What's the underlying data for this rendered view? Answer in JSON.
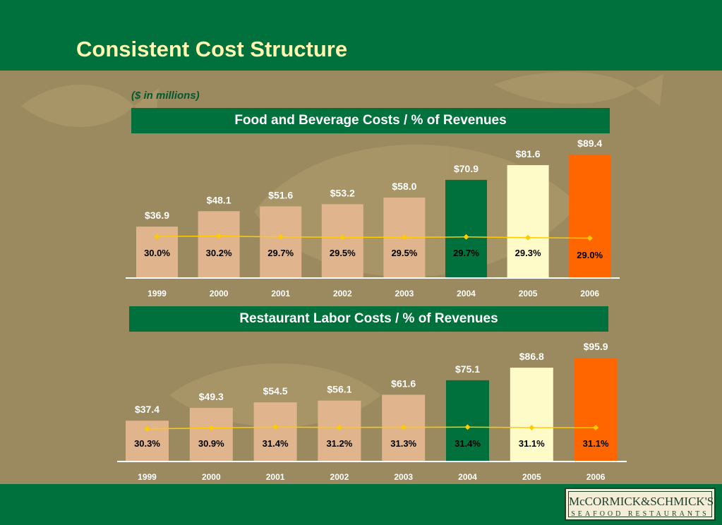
{
  "page": {
    "title": "Consistent Cost Structure",
    "subtitle": "($ in millions)"
  },
  "logo": {
    "main": "McCORMICK&SCHMICK'S",
    "sub": "SEAFOOD RESTAURANTS"
  },
  "colors": {
    "header_green": "#00703c",
    "background": "#9b8a5f",
    "bar_tan": "#e0b48c",
    "bar_green": "#00703c",
    "bar_cream": "#fffbc8",
    "bar_orange": "#ff6600",
    "line_yellow": "#ffcc00"
  },
  "chart_data": [
    {
      "type": "bar",
      "title": "Food and Beverage Costs / % of Revenues",
      "categories": [
        "1999",
        "2000",
        "2001",
        "2002",
        "2003",
        "2004",
        "2005",
        "2006"
      ],
      "values": [
        36.9,
        48.1,
        51.6,
        53.2,
        58.0,
        70.9,
        81.6,
        89.4
      ],
      "value_labels": [
        "$36.9",
        "$48.1",
        "$51.6",
        "$53.2",
        "$58.0",
        "$70.9",
        "$81.6",
        "$89.4"
      ],
      "pct_values": [
        30.0,
        30.2,
        29.7,
        29.5,
        29.5,
        29.7,
        29.3,
        29.0
      ],
      "pct_labels": [
        "30.0%",
        "30.2%",
        "29.7%",
        "29.5%",
        "29.5%",
        "29.7%",
        "29.3%",
        "29.0%"
      ],
      "bar_colors": [
        "#e0b48c",
        "#e0b48c",
        "#e0b48c",
        "#e0b48c",
        "#e0b48c",
        "#00703c",
        "#fffbc8",
        "#ff6600"
      ],
      "ylim": [
        0,
        100
      ]
    },
    {
      "type": "bar",
      "title": "Restaurant Labor Costs / % of Revenues",
      "categories": [
        "1999",
        "2000",
        "2001",
        "2002",
        "2003",
        "2004",
        "2005",
        "2006"
      ],
      "values": [
        37.4,
        49.3,
        54.5,
        56.1,
        61.6,
        75.1,
        86.8,
        95.9
      ],
      "value_labels": [
        "$37.4",
        "$49.3",
        "$54.5",
        "$56.1",
        "$61.6",
        "$75.1",
        "$86.8",
        "$95.9"
      ],
      "pct_values": [
        30.3,
        30.9,
        31.4,
        31.2,
        31.3,
        31.4,
        31.1,
        31.1
      ],
      "pct_labels": [
        "30.3%",
        "30.9%",
        "31.4%",
        "31.2%",
        "31.3%",
        "31.4%",
        "31.1%",
        "31.1%"
      ],
      "bar_colors": [
        "#e0b48c",
        "#e0b48c",
        "#e0b48c",
        "#e0b48c",
        "#e0b48c",
        "#00703c",
        "#fffbc8",
        "#ff6600"
      ],
      "ylim": [
        0,
        100
      ]
    }
  ]
}
